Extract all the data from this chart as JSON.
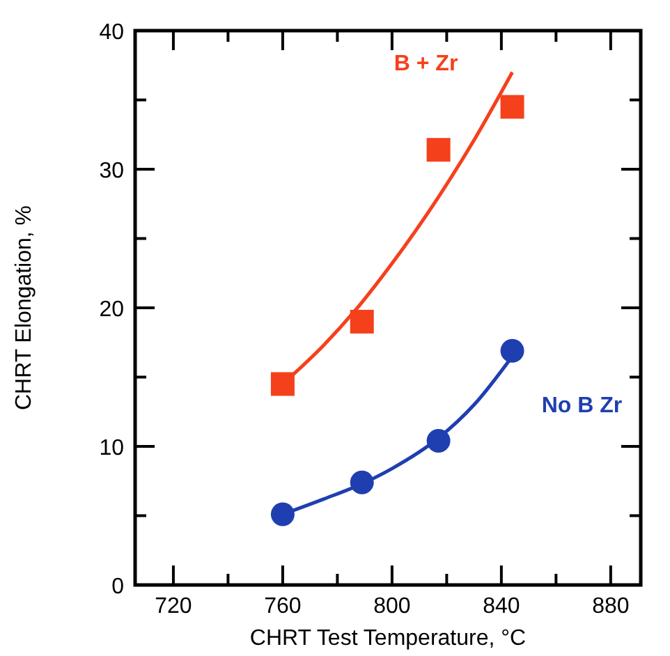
{
  "chart_data": {
    "type": "scatter",
    "xlabel": "CHRT Test Temperature, °C",
    "ylabel": "CHRT Elongation, %",
    "xlim": [
      706,
      891
    ],
    "ylim": [
      0,
      40
    ],
    "xticks": [
      720,
      {
        "value": 740,
        "label": null
      },
      760,
      {
        "value": 780,
        "label": null
      },
      800,
      {
        "value": 820,
        "label": null
      },
      840,
      {
        "value": 860,
        "label": null
      },
      880
    ],
    "yticks": [
      0,
      {
        "value": 5,
        "label": null
      },
      10,
      {
        "value": 15,
        "label": null
      },
      20,
      {
        "value": 25,
        "label": null
      },
      30,
      {
        "value": 35,
        "label": null
      },
      40
    ],
    "grid": false,
    "series": [
      {
        "name": "B + Zr",
        "color": "#f5401c",
        "marker": "square",
        "x": [
          760,
          789,
          817,
          844
        ],
        "values": [
          14.5,
          19.0,
          31.4,
          34.5
        ]
      },
      {
        "name": "No B Zr",
        "color": "#1f3fb0",
        "marker": "circle",
        "x": [
          760,
          789,
          817,
          844
        ],
        "values": [
          5.1,
          7.4,
          10.4,
          16.9
        ]
      },
      {
        "type": "line",
        "color": "#f5401c",
        "x": [
          760,
          775,
          789,
          800,
          817,
          830,
          844
        ],
        "values": [
          14.5,
          17.3,
          20.4,
          23.2,
          28.0,
          32.1,
          37.0
        ]
      },
      {
        "type": "line",
        "color": "#1f3fb0",
        "x": [
          760,
          775,
          789,
          800,
          817,
          830,
          844
        ],
        "values": [
          5.1,
          6.2,
          7.3,
          8.4,
          10.6,
          13.0,
          16.5
        ]
      }
    ]
  }
}
